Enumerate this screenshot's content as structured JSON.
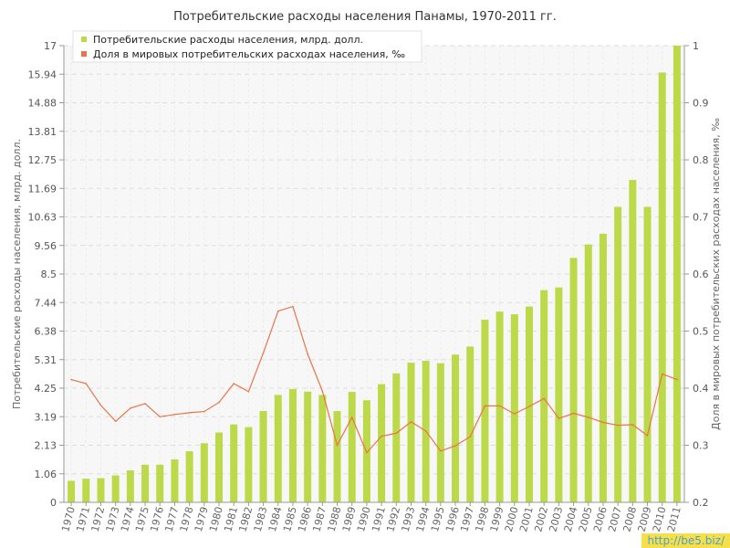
{
  "chart_data": {
    "type": "bar+line",
    "title": "Потребительские расходы населения Панамы, 1970-2011 гг.",
    "ylabel": "Потребительские расходы населения, млрд. долл.",
    "y2label": "Доля в мировых потребительских расходах населения, ‰",
    "ylim": [
      0,
      17
    ],
    "y2lim": [
      0.2,
      1
    ],
    "yticks": [
      "0",
      "1.06",
      "2.13",
      "3.19",
      "4.25",
      "5.31",
      "6.38",
      "7.44",
      "8.5",
      "9.56",
      "10.63",
      "11.69",
      "12.75",
      "13.81",
      "14.88",
      "15.94",
      "17"
    ],
    "y2ticks": [
      "0.2",
      "0.3",
      "0.4",
      "0.5",
      "0.6",
      "0.7",
      "0.8",
      "0.9",
      "1"
    ],
    "categories": [
      "1970",
      "1971",
      "1972",
      "1973",
      "1974",
      "1975",
      "1976",
      "1977",
      "1978",
      "1979",
      "1980",
      "1981",
      "1982",
      "1983",
      "1984",
      "1985",
      "1986",
      "1987",
      "1988",
      "1989",
      "1990",
      "1991",
      "1992",
      "1993",
      "1994",
      "1995",
      "1996",
      "1997",
      "1998",
      "1999",
      "2000",
      "2001",
      "2002",
      "2003",
      "2004",
      "2005",
      "2006",
      "2007",
      "2008",
      "2009",
      "2010",
      "2011"
    ],
    "series": [
      {
        "name": "Потребительские расходы населения, млрд. долл.",
        "kind": "bar",
        "axis": "left",
        "color": "#bcd94a",
        "values": [
          0.8,
          0.88,
          0.9,
          1.0,
          1.19,
          1.4,
          1.4,
          1.6,
          1.9,
          2.2,
          2.6,
          2.9,
          2.8,
          3.4,
          4.0,
          4.22,
          4.12,
          4.0,
          3.4,
          4.11,
          3.8,
          4.4,
          4.8,
          5.2,
          5.27,
          5.18,
          5.5,
          5.8,
          6.8,
          7.1,
          7.0,
          7.29,
          7.9,
          8.0,
          9.1,
          9.6,
          10.0,
          11.0,
          12.0,
          11.0,
          16.0,
          17.0
        ]
      },
      {
        "name": "Доля в мировых потребительских расходах населения, ‰",
        "kind": "line",
        "axis": "right",
        "color": "#e8744a",
        "values": [
          0.415,
          0.408,
          0.37,
          0.342,
          0.365,
          0.373,
          0.35,
          0.354,
          0.357,
          0.359,
          0.375,
          0.408,
          0.394,
          0.462,
          0.535,
          0.543,
          0.46,
          0.395,
          0.3,
          0.349,
          0.287,
          0.316,
          0.321,
          0.341,
          0.325,
          0.29,
          0.299,
          0.315,
          0.369,
          0.369,
          0.355,
          0.368,
          0.382,
          0.347,
          0.356,
          0.349,
          0.34,
          0.335,
          0.336,
          0.317,
          0.425,
          0.415
        ]
      }
    ],
    "grid": true,
    "legend": "top-left"
  },
  "watermark": "http://be5.biz/"
}
